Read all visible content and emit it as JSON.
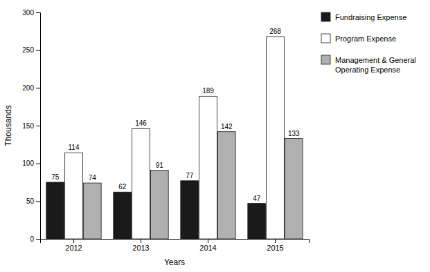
{
  "chart_data": {
    "type": "bar",
    "categories": [
      "2012",
      "2013",
      "2014",
      "2015"
    ],
    "series": [
      {
        "name": "Fundraising Expense",
        "color": "#1a1a1a",
        "values": [
          75,
          62,
          77,
          47
        ]
      },
      {
        "name": "Program Expense",
        "color": "#ffffff",
        "values": [
          114,
          146,
          189,
          268
        ]
      },
      {
        "name": "Management & General\nOperating Expense",
        "color": "#b0b0b0",
        "values": [
          74,
          91,
          142,
          133
        ]
      }
    ],
    "xlabel": "Years",
    "ylabel": "Thousands",
    "ylim": [
      0,
      300
    ],
    "yticks": [
      0,
      50,
      100,
      150,
      200,
      250,
      300
    ],
    "data_labels": true,
    "grid": false,
    "legend": "right"
  }
}
